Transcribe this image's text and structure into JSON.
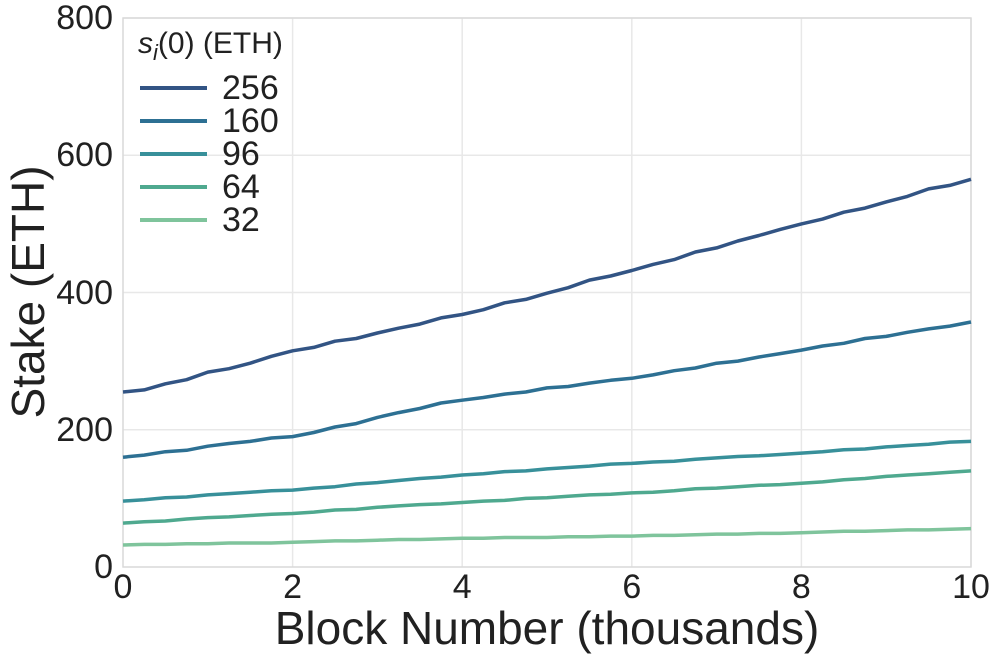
{
  "figure": {
    "background": "#ffffff",
    "text_color": "#212121",
    "grid_color": "#e8e8e8",
    "border_color": "#d9d9d9"
  },
  "chart_data": {
    "type": "line",
    "title": "",
    "xlabel": "Block Number (thousands)",
    "ylabel": "Stake (ETH)",
    "xlim": [
      0,
      10
    ],
    "ylim": [
      0,
      800
    ],
    "x_ticks": [
      0,
      2,
      4,
      6,
      8,
      10
    ],
    "y_ticks": [
      0,
      200,
      400,
      600,
      800
    ],
    "grid": true,
    "legend": {
      "position": "upper-left",
      "title_var": "s",
      "title_sub": "i",
      "title_rest": "(0) (ETH)"
    },
    "x": [
      0,
      0.25,
      0.5,
      0.75,
      1,
      1.25,
      1.5,
      1.75,
      2,
      2.25,
      2.5,
      2.75,
      3,
      3.25,
      3.5,
      3.75,
      4,
      4.25,
      4.5,
      4.75,
      5,
      5.25,
      5.5,
      5.75,
      6,
      6.25,
      6.5,
      6.75,
      7,
      7.25,
      7.5,
      7.75,
      8,
      8.25,
      8.5,
      8.75,
      9,
      9.25,
      9.5,
      9.75,
      10
    ],
    "series": [
      {
        "name": "256",
        "color": "#325484",
        "values": [
          255,
          258,
          267,
          273,
          284,
          289,
          297,
          307,
          315,
          320,
          329,
          333,
          341,
          348,
          354,
          363,
          368,
          375,
          385,
          390,
          399,
          407,
          418,
          424,
          432,
          441,
          448,
          459,
          465,
          475,
          483,
          492,
          500,
          507,
          517,
          523,
          532,
          540,
          551,
          556,
          565
        ]
      },
      {
        "name": "160",
        "color": "#2d7093",
        "values": [
          160,
          163,
          168,
          170,
          176,
          180,
          183,
          188,
          190,
          196,
          204,
          209,
          218,
          225,
          231,
          239,
          243,
          247,
          252,
          255,
          261,
          263,
          268,
          272,
          275,
          280,
          286,
          290,
          297,
          300,
          306,
          311,
          316,
          322,
          326,
          333,
          336,
          342,
          347,
          351,
          357
        ]
      },
      {
        "name": "96",
        "color": "#38909a",
        "values": [
          96,
          98,
          101,
          102,
          105,
          107,
          109,
          111,
          112,
          115,
          117,
          121,
          123,
          126,
          129,
          131,
          134,
          136,
          139,
          140,
          143,
          145,
          147,
          150,
          151,
          153,
          154,
          157,
          159,
          161,
          162,
          164,
          166,
          168,
          171,
          172,
          175,
          177,
          179,
          182,
          183
        ]
      },
      {
        "name": "64",
        "color": "#4fa98f",
        "values": [
          64,
          66,
          67,
          70,
          72,
          73,
          75,
          77,
          78,
          80,
          83,
          84,
          87,
          89,
          91,
          92,
          94,
          96,
          97,
          100,
          101,
          103,
          105,
          106,
          108,
          109,
          111,
          114,
          115,
          117,
          119,
          120,
          122,
          124,
          127,
          129,
          132,
          134,
          136,
          138,
          140
        ]
      },
      {
        "name": "32",
        "color": "#7fc49c",
        "values": [
          32,
          33,
          33,
          34,
          34,
          35,
          35,
          35,
          36,
          37,
          38,
          38,
          39,
          40,
          40,
          41,
          42,
          42,
          43,
          43,
          43,
          44,
          44,
          45,
          45,
          46,
          46,
          47,
          48,
          48,
          49,
          49,
          50,
          51,
          52,
          52,
          53,
          54,
          54,
          55,
          56
        ]
      }
    ]
  }
}
